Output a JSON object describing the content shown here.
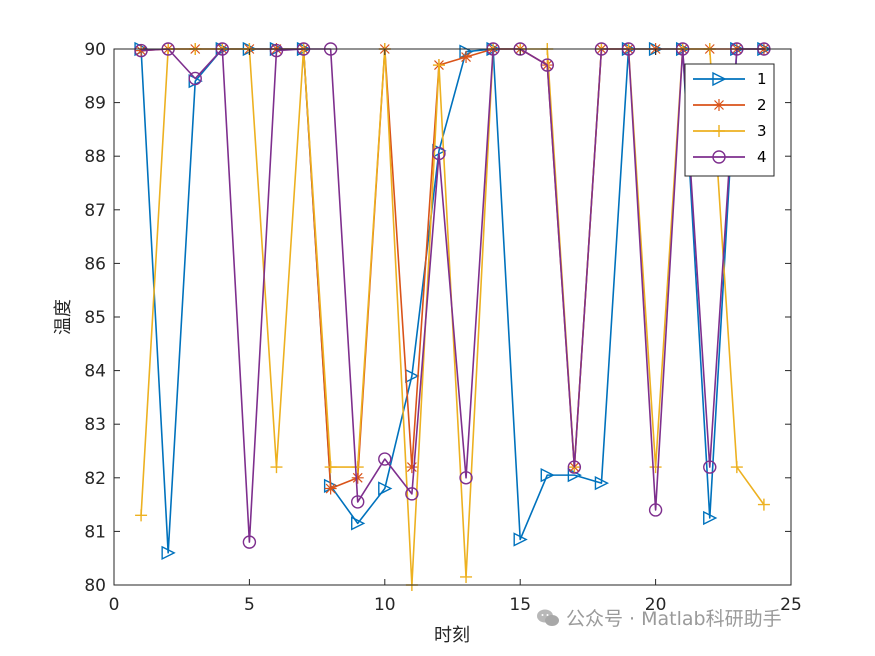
{
  "chart_data": {
    "type": "line",
    "title": "",
    "xlabel": "时刻",
    "ylabel": "温度",
    "xlim": [
      0,
      25
    ],
    "ylim": [
      80,
      90
    ],
    "xticks": [
      0,
      5,
      10,
      15,
      20,
      25
    ],
    "yticks": [
      80,
      81,
      82,
      83,
      84,
      85,
      86,
      87,
      88,
      89,
      90
    ],
    "grid": false,
    "legend_position": "top-right",
    "x": [
      1,
      2,
      3,
      4,
      5,
      6,
      7,
      8,
      9,
      10,
      11,
      12,
      13,
      14,
      15,
      16,
      17,
      18,
      19,
      20,
      21,
      22,
      23,
      24
    ],
    "series": [
      {
        "name": "1",
        "color": "#0072BD",
        "marker": "triangle-right",
        "values": [
          90,
          80.6,
          89.4,
          90,
          90,
          90,
          90,
          81.85,
          81.15,
          81.8,
          83.9,
          88.1,
          89.95,
          90,
          80.85,
          82.05,
          82.05,
          81.9,
          90,
          90,
          90,
          81.25,
          90,
          90
        ]
      },
      {
        "name": "2",
        "color": "#D95319",
        "marker": "star",
        "values": [
          89.97,
          90,
          90,
          90,
          90,
          90,
          90,
          81.8,
          82,
          90,
          82.2,
          89.7,
          89.85,
          90,
          90,
          89.7,
          82.2,
          90,
          90,
          90,
          90,
          90,
          90,
          90
        ]
      },
      {
        "name": "3",
        "color": "#EDB120",
        "marker": "plus",
        "values": [
          81.3,
          90,
          90,
          90,
          90,
          82.2,
          90,
          82.2,
          82.2,
          90,
          80,
          89.7,
          80.15,
          90,
          90,
          90,
          82.2,
          90,
          90,
          82.2,
          90,
          90,
          82.2,
          81.5
        ]
      },
      {
        "name": "4",
        "color": "#7E2F8E",
        "marker": "circle",
        "values": [
          89.97,
          90,
          89.45,
          90,
          80.8,
          89.97,
          90,
          90,
          81.55,
          82.35,
          81.7,
          88.05,
          82,
          90,
          90,
          89.7,
          82.2,
          90,
          90,
          81.4,
          90,
          82.2,
          90,
          90
        ]
      }
    ]
  },
  "watermark": {
    "icon": "wechat-icon",
    "text": "公众号 · Matlab科研助手"
  }
}
